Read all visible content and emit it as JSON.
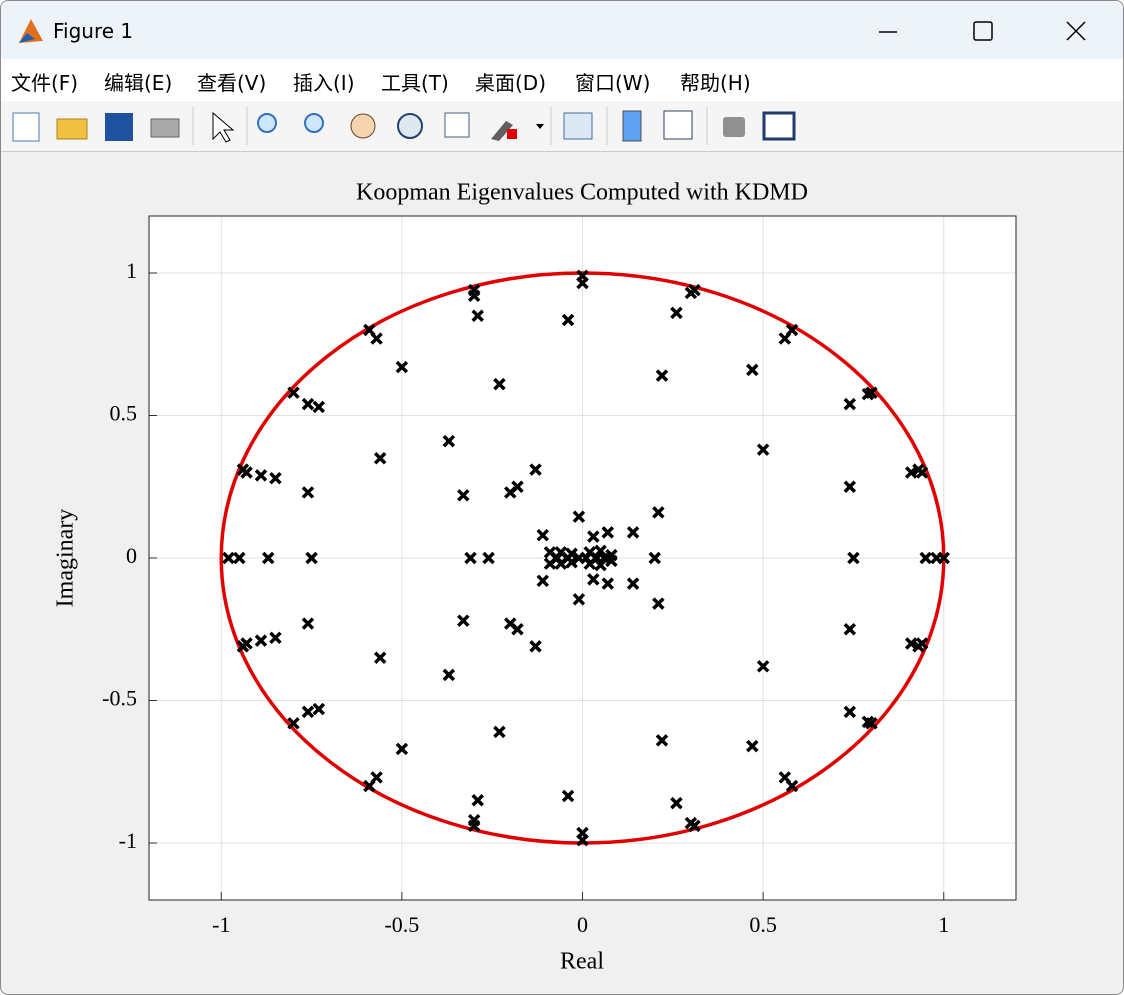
{
  "window": {
    "title": "Figure 1",
    "menu": [
      "文件(F)",
      "编辑(E)",
      "查看(V)",
      "插入(I)",
      "工具(T)",
      "桌面(D)",
      "窗口(W)",
      "帮助(H)"
    ]
  },
  "chart_data": {
    "type": "scatter",
    "title": "Koopman Eigenvalues Computed with KDMD",
    "xlabel": "Real",
    "ylabel": "Imaginary",
    "xlim": [
      -1.2,
      1.2
    ],
    "ylim": [
      -1.2,
      1.2
    ],
    "xticks": [
      -1,
      -0.5,
      0,
      0.5,
      1
    ],
    "yticks": [
      -1,
      -0.5,
      0,
      0.5,
      1
    ],
    "grid": true,
    "color": "#000000",
    "marker": "x",
    "circle": {
      "center": [
        0,
        0
      ],
      "radius": 1,
      "color": "#e00000"
    },
    "x": [
      0,
      0,
      -0.3,
      -0.3,
      -0.29,
      -0.04,
      0.31,
      0.3,
      0.26,
      -0.59,
      -0.57,
      0.58,
      0.56,
      -0.5,
      -0.23,
      0.22,
      0.47,
      -0.8,
      -0.76,
      -0.73,
      0.8,
      0.79,
      0.74,
      0.5,
      -0.37,
      -0.56,
      -0.94,
      -0.93,
      -0.89,
      -0.85,
      -0.76,
      -0.13,
      -0.18,
      -0.2,
      -0.33,
      0.21,
      0.74,
      0.91,
      0.93,
      0.94,
      0.14,
      -0.01,
      -0.11,
      0.07,
      0.03,
      -0.09,
      -0.06,
      -0.03,
      0.02,
      0.05,
      0.08,
      0,
      0,
      -0.3,
      -0.3,
      -0.29,
      -0.04,
      0.31,
      0.3,
      0.26,
      -0.59,
      -0.57,
      0.58,
      0.56,
      -0.5,
      -0.23,
      0.22,
      0.47,
      -0.8,
      -0.76,
      -0.73,
      0.8,
      0.79,
      0.74,
      0.5,
      -0.37,
      -0.56,
      -0.94,
      -0.93,
      -0.89,
      -0.85,
      -0.76,
      -0.13,
      -0.18,
      -0.2,
      -0.33,
      0.21,
      0.74,
      0.91,
      0.93,
      0.94,
      0.14,
      -0.01,
      -0.11,
      0.07,
      0.03,
      -0.09,
      -0.06,
      -0.03,
      0.02,
      0.05,
      0.08,
      -0.98,
      -0.95,
      -0.87,
      -0.75,
      -0.31,
      -0.26,
      -0.07,
      -0.04,
      -0.01,
      0.01,
      0.04,
      0.06,
      0.2,
      0.75,
      0.95,
      0.98,
      1
    ],
    "y": [
      0.99,
      0.965,
      0.94,
      0.92,
      0.85,
      0.835,
      0.94,
      0.93,
      0.86,
      0.8,
      0.77,
      0.8,
      0.77,
      0.67,
      0.61,
      0.64,
      0.66,
      0.58,
      0.54,
      0.53,
      0.58,
      0.575,
      0.54,
      0.38,
      0.41,
      0.35,
      0.31,
      0.3,
      0.29,
      0.28,
      0.23,
      0.31,
      0.25,
      0.23,
      0.22,
      0.16,
      0.25,
      0.3,
      0.31,
      0.3,
      0.09,
      0.145,
      0.08,
      0.09,
      0.075,
      0.02,
      0.02,
      0.015,
      0.02,
      0.025,
      0.01,
      -0.99,
      -0.965,
      -0.94,
      -0.92,
      -0.85,
      -0.835,
      -0.94,
      -0.93,
      -0.86,
      -0.8,
      -0.77,
      -0.8,
      -0.77,
      -0.67,
      -0.61,
      -0.64,
      -0.66,
      -0.58,
      -0.54,
      -0.53,
      -0.58,
      -0.575,
      -0.54,
      -0.38,
      -0.41,
      -0.35,
      -0.31,
      -0.3,
      -0.29,
      -0.28,
      -0.23,
      -0.31,
      -0.25,
      -0.23,
      -0.22,
      -0.16,
      -0.25,
      -0.3,
      -0.31,
      -0.3,
      -0.09,
      -0.145,
      -0.08,
      -0.09,
      -0.075,
      -0.02,
      -0.02,
      -0.015,
      -0.02,
      -0.025,
      -0.01,
      0,
      0,
      0,
      0,
      0,
      0,
      0,
      0,
      0,
      0,
      0,
      0,
      0,
      0,
      0,
      0,
      0
    ]
  }
}
